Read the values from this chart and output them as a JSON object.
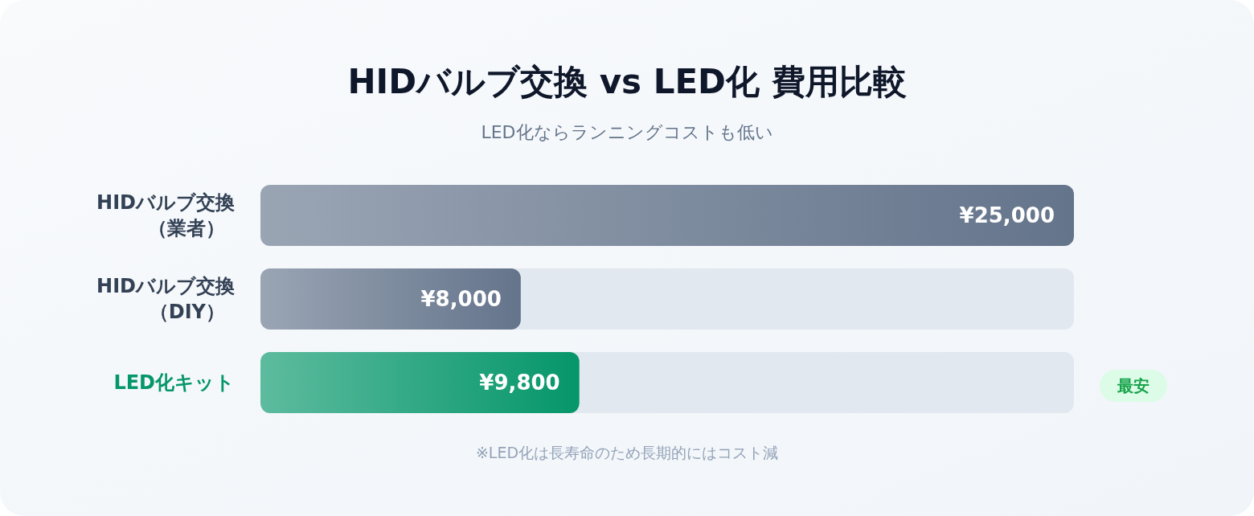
{
  "chart_data": {
    "type": "bar",
    "orientation": "horizontal",
    "title": "HIDバルブ交換 vs LED化 費用比較",
    "subtitle": "LED化ならランニングコストも低い",
    "categories": [
      "HIDバルブ交換（業者）",
      "HIDバルブ交換（DIY）",
      "LED化キット"
    ],
    "values": [
      25000,
      8000,
      9800
    ],
    "value_labels": [
      "¥25,000",
      "¥8,000",
      "¥9,800"
    ],
    "colors": [
      "#64748b",
      "#64748b",
      "#059669"
    ],
    "xlim": [
      0,
      25000
    ],
    "annotations": [
      "最安",
      "※LED化は長寿命のため長期的にはコスト減"
    ]
  }
}
